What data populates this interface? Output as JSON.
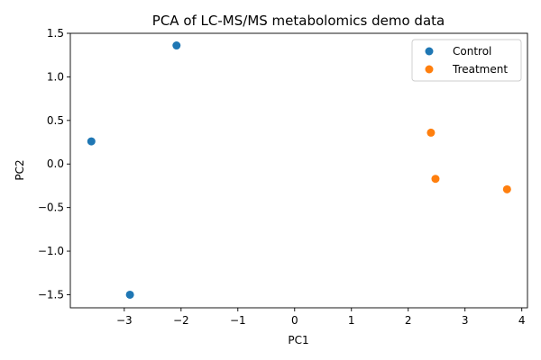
{
  "chart_data": {
    "type": "scatter",
    "title": "PCA of LC-MS/MS metabolomics demo data",
    "xlabel": "PC1",
    "ylabel": "PC2",
    "xlim": [
      -3.95,
      4.1
    ],
    "ylim": [
      -1.65,
      1.5
    ],
    "xticks": [
      -3,
      -2,
      -1,
      0,
      1,
      2,
      3,
      4
    ],
    "yticks": [
      -1.5,
      -1.0,
      -0.5,
      0.0,
      0.5,
      1.0,
      1.5
    ],
    "xtick_labels": [
      "−3",
      "−2",
      "−1",
      "0",
      "1",
      "2",
      "3",
      "4"
    ],
    "ytick_labels": [
      "−1.5",
      "−1.0",
      "−0.5",
      "0.0",
      "0.5",
      "1.0",
      "1.5"
    ],
    "grid": false,
    "legend_position": "top-right",
    "series": [
      {
        "name": "Control",
        "color": "#1f77b4",
        "points": [
          {
            "x": -2.08,
            "y": 1.36
          },
          {
            "x": -3.58,
            "y": 0.26
          },
          {
            "x": -2.9,
            "y": -1.5
          }
        ]
      },
      {
        "name": "Treatment",
        "color": "#ff7f0e",
        "points": [
          {
            "x": 2.4,
            "y": 0.36
          },
          {
            "x": 2.48,
            "y": -0.17
          },
          {
            "x": 3.74,
            "y": -0.29
          }
        ]
      }
    ]
  }
}
